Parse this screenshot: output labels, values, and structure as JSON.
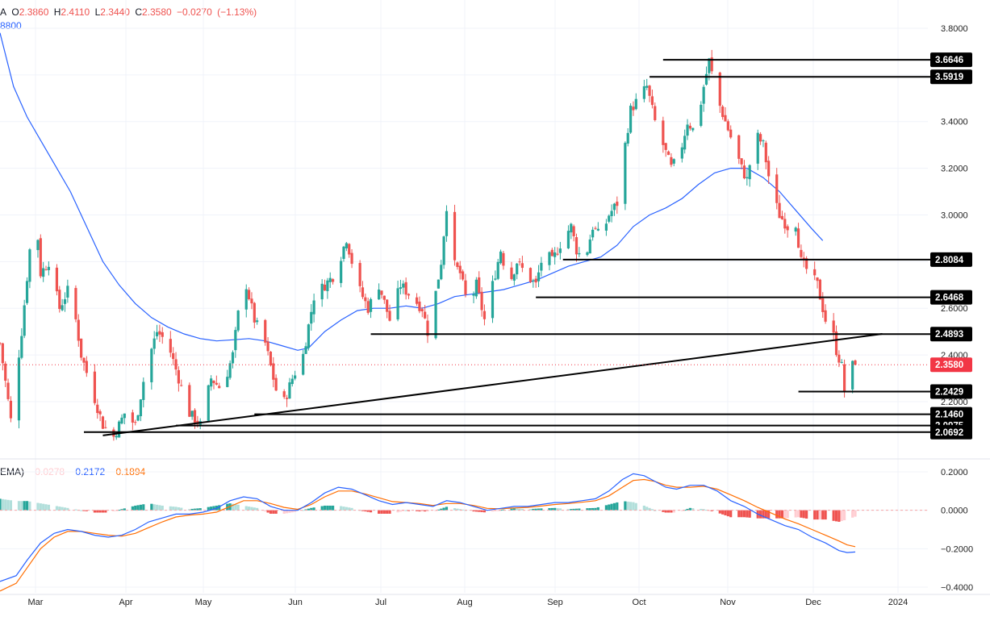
{
  "legend": {
    "ohlc": {
      "prefix": "A",
      "open_label": "O",
      "open": "2.3860",
      "high_label": "H",
      "high": "2.4110",
      "low_label": "L",
      "low": "2.3440",
      "close_label": "C",
      "close": "2.3580",
      "change": "−0.0270",
      "change_pct": "(−1.13%)"
    },
    "ma": {
      "value": "8800"
    },
    "macd": {
      "prefix": "EMA)",
      "hist": "−0.0278",
      "macd": "−0.2172",
      "signal": "−0.1894"
    }
  },
  "colors": {
    "up": "#26a69a",
    "down": "#ef5350",
    "ma": "#2962ff",
    "macd_line": "#2962ff",
    "signal_line": "#ff6d00",
    "hist_up_strong": "#26a69a",
    "hist_up_weak": "#b2dfdb",
    "hist_down_strong": "#ef5350",
    "hist_down_weak": "#ffcdd2",
    "level": "#000000",
    "price_tag": "#f23645"
  },
  "chart_data": [
    {
      "type": "candlestick",
      "x_axis": {
        "labels": [
          "Mar",
          "Apr",
          "May",
          "Jun",
          "Jul",
          "Aug",
          "Sep",
          "Oct",
          "Nov",
          "Dec",
          "2024"
        ]
      },
      "y_axis": {
        "scale": "linear",
        "labels": [
          "3.8000",
          "3.6000",
          "3.4000",
          "3.2000",
          "3.0000",
          "2.6000",
          "2.4000",
          "2.2000"
        ],
        "range": [
          2.02,
          3.85
        ]
      },
      "grid": true,
      "current_price": {
        "value": 2.358,
        "label": "2.3580"
      },
      "levels": [
        {
          "value": 3.6646,
          "label": "3.6646",
          "from_day": 245,
          "to_day": 362
        },
        {
          "value": 3.5919,
          "label": "3.5919",
          "from_day": 240,
          "to_day": 362
        },
        {
          "value": 2.8084,
          "label": "2.8084",
          "from_day": 208,
          "to_day": 362
        },
        {
          "value": 2.6468,
          "label": "2.6468",
          "from_day": 198,
          "to_day": 362
        },
        {
          "value": 2.4893,
          "label": "2.4893",
          "from_day": 137,
          "to_day": 362
        },
        {
          "value": 2.2429,
          "label": "2.2429",
          "from_day": 295,
          "to_day": 362
        },
        {
          "value": 2.146,
          "label": "2.1460",
          "from_day": 94,
          "to_day": 362
        },
        {
          "value": 2.0975,
          "label": "2.0975",
          "from_day": 65,
          "to_day": 362
        },
        {
          "value": 2.0692,
          "label": "2.0692",
          "from_day": 31,
          "to_day": 362
        }
      ],
      "trendline": {
        "from": {
          "day": 38,
          "value": 2.055
        },
        "to": {
          "day": 326,
          "value": 2.49
        }
      },
      "price_path": [
        [
          0,
          2.45
        ],
        [
          4,
          2.12
        ],
        [
          8,
          2.5
        ],
        [
          11,
          2.85
        ],
        [
          13,
          3.05
        ],
        [
          15,
          2.75
        ],
        [
          18,
          2.8
        ],
        [
          22,
          2.6
        ],
        [
          26,
          2.7
        ],
        [
          30,
          2.4
        ],
        [
          34,
          2.25
        ],
        [
          38,
          2.1
        ],
        [
          42,
          2.05
        ],
        [
          46,
          2.15
        ],
        [
          50,
          2.1
        ],
        [
          54,
          2.35
        ],
        [
          58,
          2.5
        ],
        [
          62,
          2.45
        ],
        [
          66,
          2.3
        ],
        [
          70,
          2.15
        ],
        [
          74,
          2.1
        ],
        [
          78,
          2.3
        ],
        [
          82,
          2.25
        ],
        [
          86,
          2.4
        ],
        [
          90,
          2.75
        ],
        [
          94,
          2.55
        ],
        [
          98,
          2.45
        ],
        [
          102,
          2.25
        ],
        [
          105,
          2.2
        ],
        [
          108,
          2.3
        ],
        [
          112,
          2.4
        ],
        [
          116,
          2.65
        ],
        [
          120,
          2.7
        ],
        [
          124,
          2.75
        ],
        [
          128,
          2.9
        ],
        [
          132,
          2.7
        ],
        [
          136,
          2.6
        ],
        [
          140,
          2.7
        ],
        [
          144,
          2.55
        ],
        [
          148,
          2.7
        ],
        [
          152,
          2.65
        ],
        [
          156,
          2.6
        ],
        [
          158,
          2.5
        ],
        [
          160,
          2.6
        ],
        [
          163,
          2.8
        ],
        [
          165,
          3.04
        ],
        [
          167,
          2.8
        ],
        [
          170,
          2.75
        ],
        [
          173,
          2.6
        ],
        [
          176,
          2.7
        ],
        [
          179,
          2.55
        ],
        [
          182,
          2.7
        ],
        [
          185,
          2.85
        ],
        [
          188,
          2.7
        ],
        [
          191,
          2.8
        ],
        [
          194,
          2.75
        ],
        [
          198,
          2.7
        ],
        [
          201,
          2.85
        ],
        [
          204,
          2.8
        ],
        [
          208,
          2.9
        ],
        [
          211,
          2.95
        ],
        [
          213,
          2.85
        ],
        [
          216,
          2.8
        ],
        [
          219,
          2.95
        ],
        [
          222,
          2.9
        ],
        [
          225,
          3.0
        ],
        [
          228,
          3.05
        ],
        [
          231,
          3.3
        ],
        [
          233,
          3.45
        ],
        [
          236,
          3.5
        ],
        [
          239,
          3.55
        ],
        [
          242,
          3.4
        ],
        [
          245,
          3.3
        ],
        [
          248,
          3.2
        ],
        [
          251,
          3.25
        ],
        [
          254,
          3.4
        ],
        [
          257,
          3.35
        ],
        [
          260,
          3.55
        ],
        [
          262,
          3.66
        ],
        [
          265,
          3.5
        ],
        [
          268,
          3.4
        ],
        [
          271,
          3.3
        ],
        [
          274,
          3.2
        ],
        [
          276,
          3.15
        ],
        [
          279,
          3.35
        ],
        [
          282,
          3.3
        ],
        [
          285,
          3.1
        ],
        [
          288,
          3.0
        ],
        [
          291,
          2.95
        ],
        [
          293,
          3.05
        ],
        [
          296,
          2.8
        ],
        [
          299,
          2.75
        ],
        [
          302,
          2.7
        ],
        [
          304,
          2.6
        ],
        [
          306,
          2.5
        ],
        [
          308,
          2.48
        ],
        [
          309,
          2.42
        ],
        [
          311,
          2.35
        ],
        [
          312,
          2.25
        ],
        [
          314,
          2.35
        ],
        [
          316,
          2.358
        ]
      ],
      "ma_path": [
        [
          0,
          3.78
        ],
        [
          5,
          3.55
        ],
        [
          10,
          3.42
        ],
        [
          15,
          3.32
        ],
        [
          20,
          3.22
        ],
        [
          26,
          3.1
        ],
        [
          32,
          2.95
        ],
        [
          38,
          2.8
        ],
        [
          44,
          2.7
        ],
        [
          50,
          2.62
        ],
        [
          56,
          2.56
        ],
        [
          62,
          2.52
        ],
        [
          68,
          2.49
        ],
        [
          74,
          2.47
        ],
        [
          80,
          2.46
        ],
        [
          86,
          2.465
        ],
        [
          92,
          2.47
        ],
        [
          98,
          2.46
        ],
        [
          104,
          2.44
        ],
        [
          110,
          2.42
        ],
        [
          114,
          2.43
        ],
        [
          120,
          2.5
        ],
        [
          126,
          2.55
        ],
        [
          132,
          2.59
        ],
        [
          138,
          2.6
        ],
        [
          144,
          2.6
        ],
        [
          150,
          2.61
        ],
        [
          156,
          2.6
        ],
        [
          162,
          2.62
        ],
        [
          168,
          2.65
        ],
        [
          174,
          2.66
        ],
        [
          180,
          2.67
        ],
        [
          186,
          2.68
        ],
        [
          192,
          2.7
        ],
        [
          198,
          2.72
        ],
        [
          204,
          2.75
        ],
        [
          210,
          2.78
        ],
        [
          216,
          2.8
        ],
        [
          222,
          2.82
        ],
        [
          228,
          2.87
        ],
        [
          234,
          2.95
        ],
        [
          240,
          3.0
        ],
        [
          246,
          3.03
        ],
        [
          252,
          3.07
        ],
        [
          258,
          3.13
        ],
        [
          264,
          3.18
        ],
        [
          270,
          3.2
        ],
        [
          276,
          3.2
        ],
        [
          282,
          3.16
        ],
        [
          288,
          3.1
        ],
        [
          294,
          3.02
        ],
        [
          300,
          2.94
        ],
        [
          304,
          2.89
        ]
      ]
    },
    {
      "type": "macd",
      "y_axis": {
        "labels": [
          "0.2000",
          "0.0000",
          "−0.2000",
          "−0.4000"
        ],
        "range": [
          -0.42,
          0.24
        ]
      },
      "macd_path": [
        [
          0,
          -0.37
        ],
        [
          6,
          -0.34
        ],
        [
          10,
          -0.26
        ],
        [
          15,
          -0.17
        ],
        [
          20,
          -0.12
        ],
        [
          25,
          -0.1
        ],
        [
          30,
          -0.11
        ],
        [
          35,
          -0.13
        ],
        [
          40,
          -0.14
        ],
        [
          45,
          -0.13
        ],
        [
          50,
          -0.1
        ],
        [
          55,
          -0.06
        ],
        [
          60,
          -0.04
        ],
        [
          65,
          -0.02
        ],
        [
          70,
          -0.02
        ],
        [
          75,
          -0.01
        ],
        [
          80,
          0.01
        ],
        [
          85,
          0.05
        ],
        [
          90,
          0.07
        ],
        [
          95,
          0.06
        ],
        [
          100,
          0.02
        ],
        [
          105,
          0.0
        ],
        [
          110,
          0.0
        ],
        [
          115,
          0.04
        ],
        [
          120,
          0.09
        ],
        [
          125,
          0.12
        ],
        [
          130,
          0.11
        ],
        [
          135,
          0.08
        ],
        [
          140,
          0.05
        ],
        [
          145,
          0.03
        ],
        [
          150,
          0.04
        ],
        [
          155,
          0.03
        ],
        [
          160,
          0.02
        ],
        [
          165,
          0.05
        ],
        [
          170,
          0.04
        ],
        [
          175,
          0.02
        ],
        [
          180,
          0.0
        ],
        [
          185,
          0.01
        ],
        [
          190,
          0.02
        ],
        [
          195,
          0.02
        ],
        [
          200,
          0.03
        ],
        [
          205,
          0.04
        ],
        [
          210,
          0.04
        ],
        [
          215,
          0.05
        ],
        [
          220,
          0.06
        ],
        [
          225,
          0.1
        ],
        [
          230,
          0.16
        ],
        [
          234,
          0.19
        ],
        [
          238,
          0.18
        ],
        [
          242,
          0.15
        ],
        [
          246,
          0.12
        ],
        [
          250,
          0.11
        ],
        [
          255,
          0.13
        ],
        [
          260,
          0.13
        ],
        [
          265,
          0.1
        ],
        [
          270,
          0.05
        ],
        [
          275,
          0.02
        ],
        [
          280,
          -0.02
        ],
        [
          285,
          -0.05
        ],
        [
          290,
          -0.08
        ],
        [
          295,
          -0.1
        ],
        [
          300,
          -0.14
        ],
        [
          305,
          -0.17
        ],
        [
          310,
          -0.21
        ],
        [
          313,
          -0.22
        ],
        [
          316,
          -0.2172
        ]
      ],
      "signal_path": [
        [
          0,
          -0.42
        ],
        [
          6,
          -0.38
        ],
        [
          10,
          -0.3
        ],
        [
          15,
          -0.2
        ],
        [
          20,
          -0.14
        ],
        [
          25,
          -0.11
        ],
        [
          30,
          -0.11
        ],
        [
          35,
          -0.12
        ],
        [
          40,
          -0.13
        ],
        [
          45,
          -0.135
        ],
        [
          50,
          -0.12
        ],
        [
          55,
          -0.09
        ],
        [
          60,
          -0.06
        ],
        [
          65,
          -0.035
        ],
        [
          70,
          -0.025
        ],
        [
          75,
          -0.02
        ],
        [
          80,
          -0.01
        ],
        [
          85,
          0.02
        ],
        [
          90,
          0.05
        ],
        [
          95,
          0.05
        ],
        [
          100,
          0.035
        ],
        [
          105,
          0.015
        ],
        [
          110,
          0.005
        ],
        [
          115,
          0.03
        ],
        [
          120,
          0.07
        ],
        [
          125,
          0.1
        ],
        [
          130,
          0.1
        ],
        [
          135,
          0.085
        ],
        [
          140,
          0.065
        ],
        [
          145,
          0.045
        ],
        [
          150,
          0.04
        ],
        [
          155,
          0.035
        ],
        [
          160,
          0.025
        ],
        [
          165,
          0.035
        ],
        [
          170,
          0.035
        ],
        [
          175,
          0.025
        ],
        [
          180,
          0.01
        ],
        [
          185,
          0.008
        ],
        [
          190,
          0.012
        ],
        [
          195,
          0.015
        ],
        [
          200,
          0.022
        ],
        [
          205,
          0.03
        ],
        [
          210,
          0.035
        ],
        [
          215,
          0.042
        ],
        [
          220,
          0.05
        ],
        [
          225,
          0.075
        ],
        [
          230,
          0.12
        ],
        [
          234,
          0.155
        ],
        [
          238,
          0.16
        ],
        [
          242,
          0.15
        ],
        [
          246,
          0.13
        ],
        [
          250,
          0.12
        ],
        [
          255,
          0.12
        ],
        [
          260,
          0.125
        ],
        [
          265,
          0.11
        ],
        [
          270,
          0.08
        ],
        [
          275,
          0.05
        ],
        [
          280,
          0.015
        ],
        [
          285,
          -0.015
        ],
        [
          290,
          -0.045
        ],
        [
          295,
          -0.07
        ],
        [
          300,
          -0.1
        ],
        [
          305,
          -0.13
        ],
        [
          310,
          -0.16
        ],
        [
          313,
          -0.18
        ],
        [
          316,
          -0.1894
        ]
      ]
    }
  ]
}
